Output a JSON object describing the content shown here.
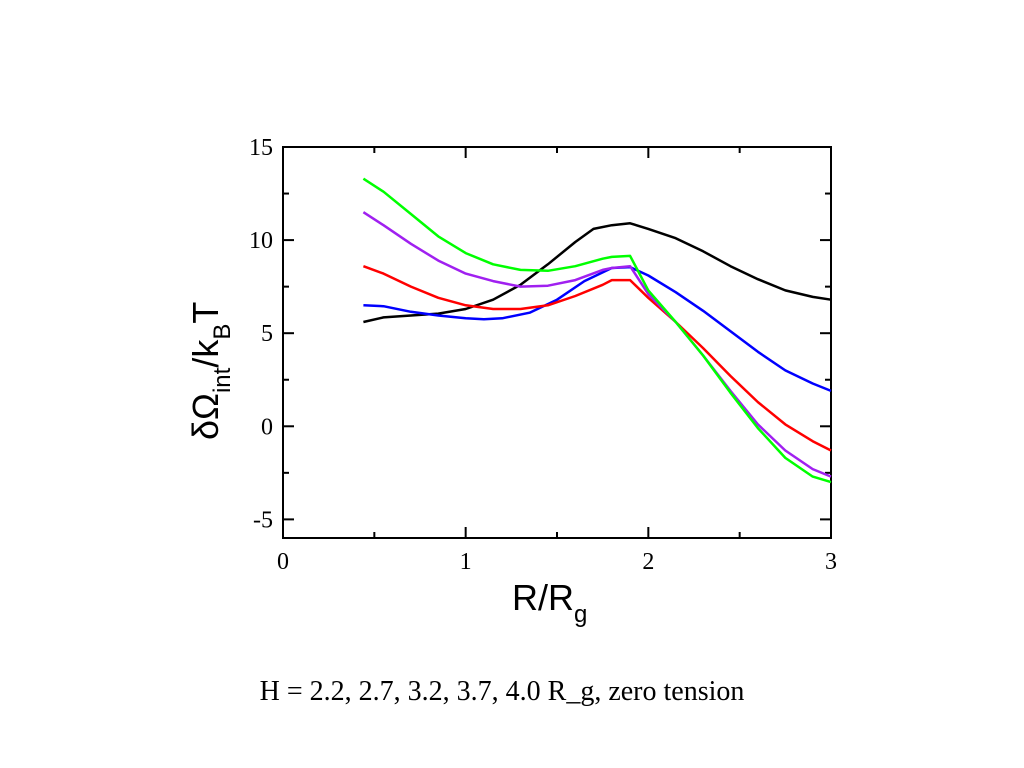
{
  "caption": "H = 2.2, 2.7, 3.2, 3.7, 4.0 R_g, zero tension",
  "chart_data": {
    "type": "line",
    "xlabel": {
      "main": "R/R",
      "sub": "g"
    },
    "ylabel": {
      "part1": "δΩ",
      "sub1": "int",
      "part2": "/k",
      "sub2": "B",
      "part3": "T"
    },
    "xlim": [
      0,
      3
    ],
    "ylim": [
      -6,
      15
    ],
    "xticks": [
      0,
      1,
      2,
      3
    ],
    "yticks": [
      -5,
      0,
      5,
      10,
      15
    ],
    "x_tick_labels": [
      "0",
      "1",
      "2",
      "3"
    ],
    "y_tick_labels": [
      "-5",
      "0",
      "5",
      "10",
      "15"
    ],
    "grid": false,
    "series": [
      {
        "color": "#000000",
        "x": [
          0.44,
          0.55,
          0.7,
          0.85,
          1.0,
          1.15,
          1.3,
          1.45,
          1.6,
          1.7,
          1.8,
          1.9,
          2.0,
          2.15,
          2.3,
          2.45,
          2.6,
          2.75,
          2.9,
          3.0
        ],
        "y": [
          5.6,
          5.85,
          5.95,
          6.05,
          6.3,
          6.8,
          7.6,
          8.7,
          9.9,
          10.6,
          10.8,
          10.9,
          10.6,
          10.1,
          9.4,
          8.6,
          7.9,
          7.3,
          6.95,
          6.8
        ]
      },
      {
        "color": "#0000ff",
        "x": [
          0.44,
          0.55,
          0.7,
          0.85,
          1.0,
          1.1,
          1.2,
          1.35,
          1.5,
          1.65,
          1.8,
          1.9,
          2.0,
          2.15,
          2.3,
          2.45,
          2.6,
          2.75,
          2.9,
          3.0
        ],
        "y": [
          6.5,
          6.45,
          6.15,
          5.95,
          5.8,
          5.75,
          5.8,
          6.1,
          6.8,
          7.8,
          8.5,
          8.55,
          8.1,
          7.2,
          6.2,
          5.1,
          4.0,
          3.0,
          2.3,
          1.9
        ]
      },
      {
        "color": "#ff0000",
        "x": [
          0.44,
          0.55,
          0.7,
          0.85,
          1.0,
          1.15,
          1.3,
          1.45,
          1.6,
          1.75,
          1.8,
          1.9,
          2.0,
          2.15,
          2.3,
          2.45,
          2.6,
          2.75,
          2.9,
          3.0
        ],
        "y": [
          8.6,
          8.2,
          7.5,
          6.9,
          6.5,
          6.3,
          6.3,
          6.5,
          7.0,
          7.6,
          7.85,
          7.85,
          6.9,
          5.6,
          4.2,
          2.7,
          1.3,
          0.1,
          -0.8,
          -1.3
        ]
      },
      {
        "color": "#a020f0",
        "x": [
          0.44,
          0.55,
          0.7,
          0.85,
          1.0,
          1.15,
          1.3,
          1.45,
          1.6,
          1.75,
          1.8,
          1.9,
          2.0,
          2.15,
          2.3,
          2.45,
          2.6,
          2.75,
          2.9,
          3.0
        ],
        "y": [
          11.5,
          10.8,
          9.8,
          8.9,
          8.2,
          7.8,
          7.5,
          7.55,
          7.85,
          8.4,
          8.5,
          8.6,
          7.1,
          5.6,
          3.8,
          1.9,
          0.1,
          -1.3,
          -2.3,
          -2.7
        ]
      },
      {
        "color": "#00ff00",
        "x": [
          0.44,
          0.55,
          0.7,
          0.85,
          1.0,
          1.15,
          1.3,
          1.45,
          1.6,
          1.75,
          1.8,
          1.9,
          2.0,
          2.15,
          2.3,
          2.45,
          2.6,
          2.75,
          2.9,
          3.0
        ],
        "y": [
          13.3,
          12.6,
          11.4,
          10.2,
          9.3,
          8.7,
          8.4,
          8.35,
          8.6,
          9.0,
          9.1,
          9.15,
          7.3,
          5.6,
          3.8,
          1.8,
          -0.1,
          -1.7,
          -2.7,
          -3.0
        ]
      }
    ]
  }
}
